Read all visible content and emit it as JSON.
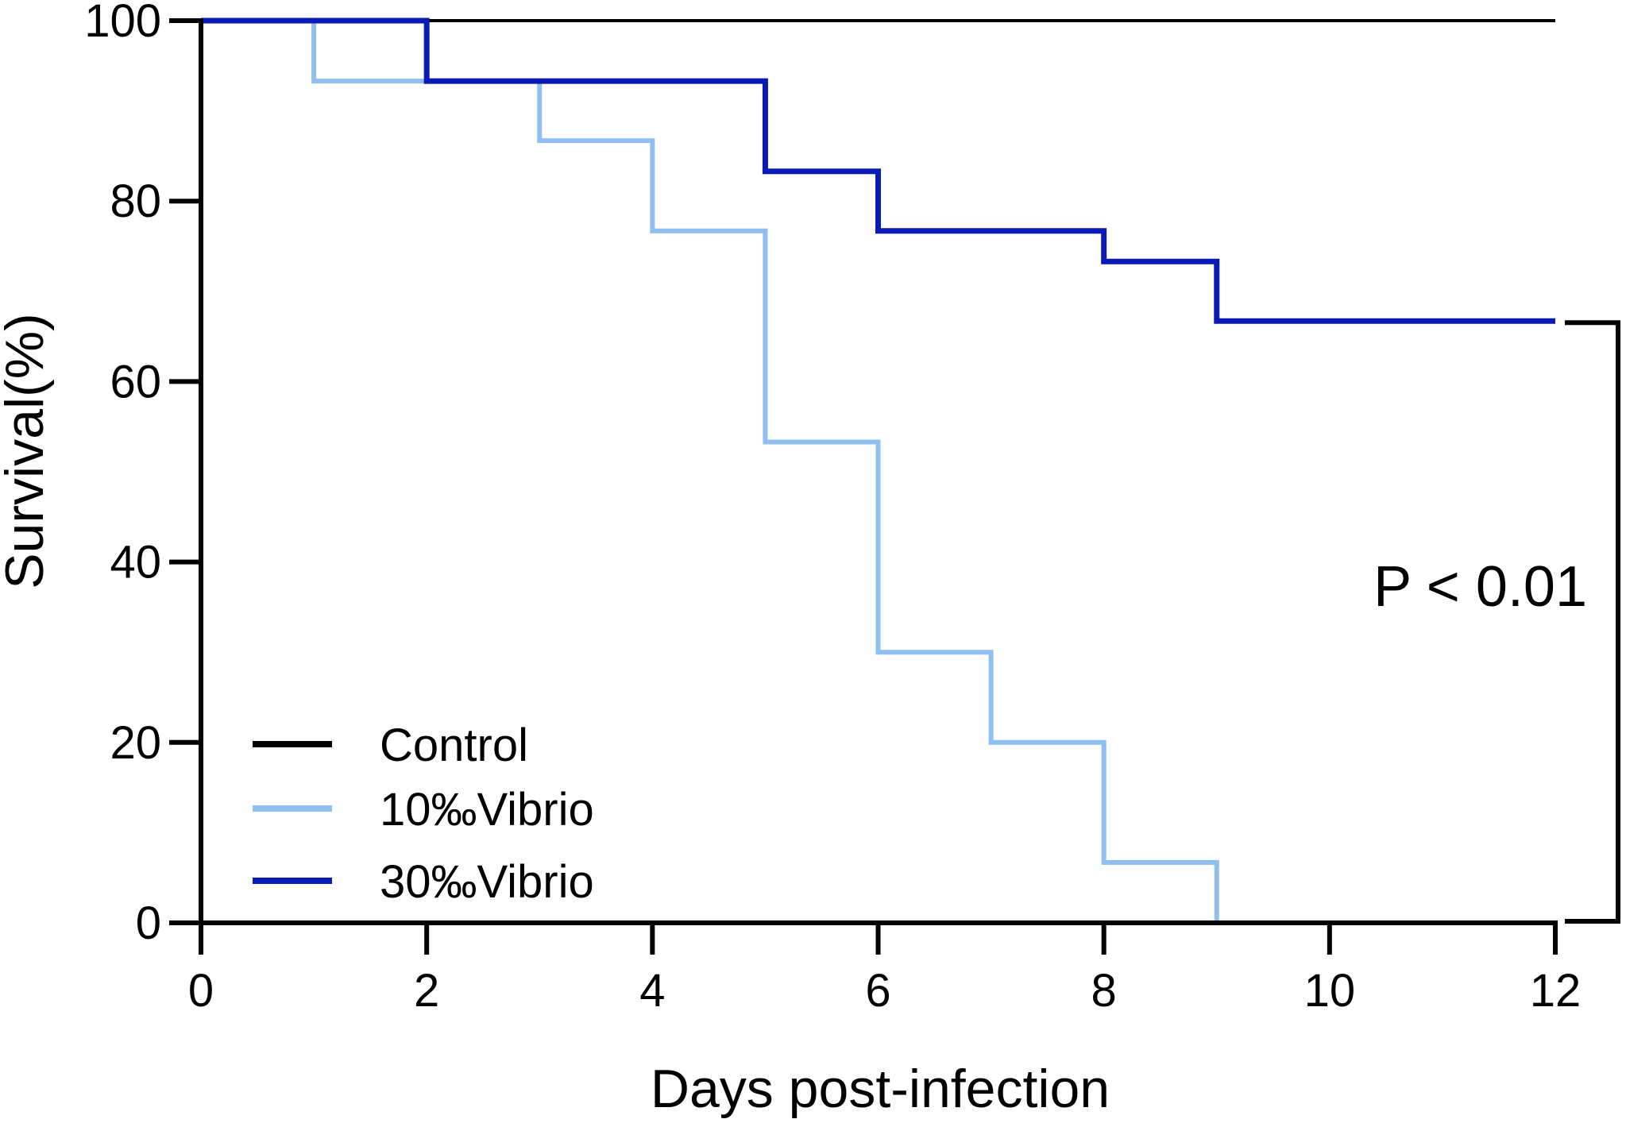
{
  "chart_data": {
    "type": "line",
    "step": true,
    "title": "",
    "xlabel": "Days post-infection",
    "ylabel": "Survival(%)",
    "xlim": [
      0,
      12
    ],
    "ylim": [
      0,
      100
    ],
    "x_ticks": [
      0,
      2,
      4,
      6,
      8,
      10,
      12
    ],
    "y_ticks": [
      0,
      20,
      40,
      60,
      80,
      100
    ],
    "grid": false,
    "legend_position": "bottom-left",
    "series": [
      {
        "name": "Control",
        "color": "#000000",
        "points": [
          [
            0,
            100
          ],
          [
            12,
            100
          ]
        ]
      },
      {
        "name": "10‰Vibrio",
        "color": "#8fbef0",
        "points": [
          [
            0,
            100
          ],
          [
            1,
            93.3
          ],
          [
            3,
            86.7
          ],
          [
            4,
            76.7
          ],
          [
            5,
            53.3
          ],
          [
            6,
            30
          ],
          [
            7,
            20
          ],
          [
            8,
            6.7
          ],
          [
            9,
            0
          ]
        ]
      },
      {
        "name": "30‰Vibrio",
        "color": "#0a1ab4",
        "points": [
          [
            0,
            100
          ],
          [
            2,
            93.3
          ],
          [
            5,
            83.3
          ],
          [
            6,
            76.7
          ],
          [
            8,
            73.3
          ],
          [
            9,
            66.7
          ],
          [
            12,
            66.7
          ]
        ]
      }
    ],
    "annotations": [
      {
        "text": "P < 0.01",
        "bracket_between": [
          "30‰Vibrio",
          "10‰Vibrio"
        ]
      }
    ]
  }
}
